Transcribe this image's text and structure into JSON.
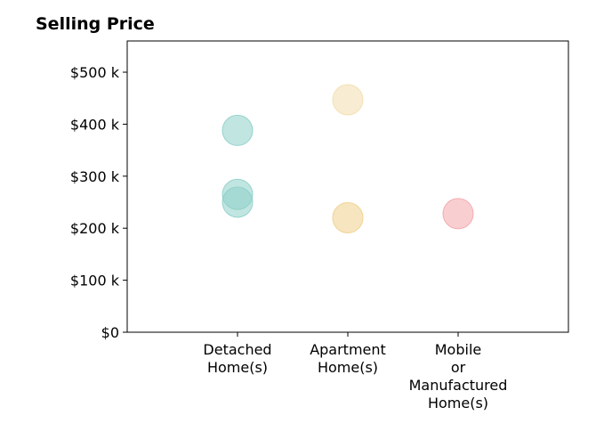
{
  "chart_data": {
    "type": "scatter",
    "title": "Selling Price",
    "xlabel": "",
    "ylabel": "",
    "categories": [
      "Detached\nHome(s)",
      "Apartment\nHome(s)",
      "Mobile\nor\nManufactured\nHome(s)"
    ],
    "xlim": [
      -1,
      3
    ],
    "ylim": [
      0,
      560000
    ],
    "yticks": [
      0,
      100000,
      200000,
      300000,
      400000,
      500000
    ],
    "ytick_labels": [
      "$0",
      "$100 k",
      "$200 k",
      "$300 k",
      "$400 k",
      "$500 k"
    ],
    "grid": false,
    "points": [
      {
        "category_index": 0,
        "y": 388000,
        "color": "#8ecfc9"
      },
      {
        "category_index": 0,
        "y": 265000,
        "color": "#8ecfc9"
      },
      {
        "category_index": 0,
        "y": 250000,
        "color": "#8ecfc9"
      },
      {
        "category_index": 1,
        "y": 447000,
        "color": "#f3dfae"
      },
      {
        "category_index": 1,
        "y": 220000,
        "color": "#f0d08a"
      },
      {
        "category_index": 2,
        "y": 228000,
        "color": "#f4a5ab"
      }
    ],
    "marker_opacity": 0.55
  }
}
